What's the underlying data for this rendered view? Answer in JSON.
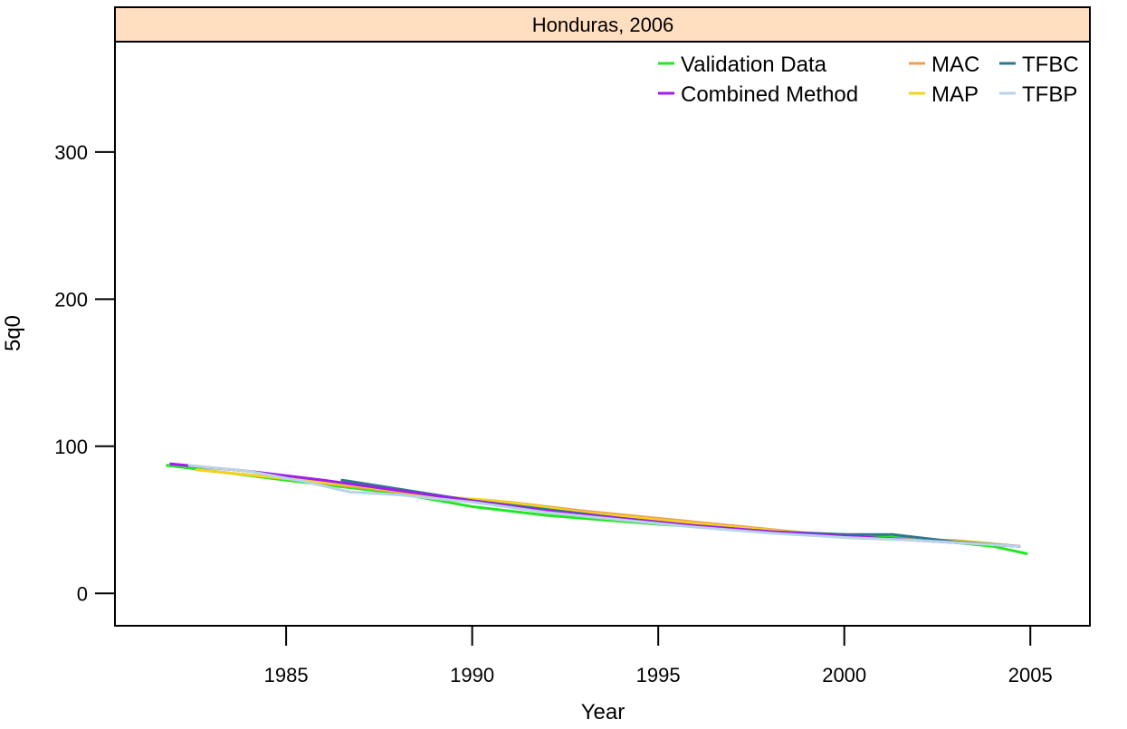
{
  "chart_data": {
    "type": "line",
    "title": "Honduras, 2006",
    "xlabel": "Year",
    "ylabel": "5q0",
    "xlim": [
      1980.4,
      2006.6
    ],
    "ylim": [
      -22,
      375
    ],
    "xticks": [
      1985,
      1990,
      1995,
      2000,
      2005
    ],
    "yticks": [
      0,
      100,
      200,
      300
    ],
    "legend_position": "top-right",
    "series": [
      {
        "name": "Validation Data",
        "color": "#22e622",
        "x": [
          1981.8,
          1985,
          1988,
          1990,
          1992,
          1995,
          1998,
          2000,
          2002,
          2004,
          2004.9
        ],
        "y": [
          87,
          77,
          68,
          59,
          53,
          47,
          42,
          40,
          37,
          32,
          27
        ]
      },
      {
        "name": "MAC",
        "color": "#f0a050",
        "x": [
          1982.6,
          1985,
          1987,
          1989,
          1991,
          1993,
          1995,
          1997,
          1999,
          2000,
          2001,
          2003,
          2004.7
        ],
        "y": [
          84,
          78,
          72,
          66,
          62,
          56,
          51,
          46,
          41,
          38,
          37,
          36,
          32
        ]
      },
      {
        "name": "MAP",
        "color": "#f2d41c",
        "x": [
          1982.6,
          1985,
          1987,
          1989,
          1990.6,
          1993,
          1995,
          1997,
          1999,
          2001,
          2003,
          2004.7
        ],
        "y": [
          84,
          78,
          73,
          66,
          63,
          55,
          50,
          45,
          41,
          37,
          36,
          32
        ]
      },
      {
        "name": "TFBC",
        "color": "#2a7a8c",
        "x": [
          1986.5,
          1988,
          1990,
          1992,
          1994,
          1996,
          1998,
          2000,
          2001.3,
          2003,
          2004.7
        ],
        "y": [
          77,
          71,
          63,
          57,
          51,
          46,
          42,
          40,
          40,
          35,
          32
        ]
      },
      {
        "name": "Combined Method",
        "color": "#a01cf0",
        "x": [
          1981.9,
          1984,
          1986,
          1988,
          1990,
          1992,
          1994,
          1996,
          1998,
          2000,
          2002,
          2004.7
        ],
        "y": [
          88,
          83,
          77,
          70,
          63,
          56,
          51,
          46,
          42,
          39,
          36,
          32
        ]
      },
      {
        "name": "TFBP",
        "color": "#b8d4e6",
        "x": [
          1982.4,
          1984,
          1985.5,
          1986.7,
          1988,
          1990,
          1992,
          1994,
          1996,
          1998,
          2000,
          2002,
          2004.7
        ],
        "y": [
          87,
          83,
          76,
          69,
          67,
          62,
          55,
          50,
          45,
          41,
          38,
          36,
          32
        ]
      }
    ],
    "legend_columns": [
      [
        "Validation Data",
        "Combined Method"
      ],
      [
        "MAC",
        "MAP"
      ],
      [
        "TFBC",
        "TFBP"
      ]
    ]
  }
}
